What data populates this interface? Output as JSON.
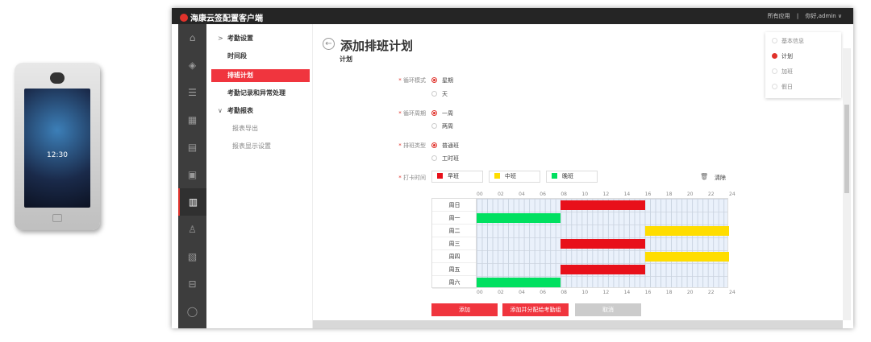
{
  "device": {
    "time": "12:30"
  },
  "topbar": {
    "app_title": "海康云签配置客户端",
    "all_apps": "所有应用",
    "separator": "|",
    "user": "你好,admin ∨"
  },
  "iconbar": [
    "home-icon",
    "cube-icon",
    "list-icon",
    "building-icon",
    "device-icon",
    "door-icon",
    "attendance-icon",
    "user-icon",
    "report-icon",
    "vehicle-icon",
    "shield-icon"
  ],
  "nav": {
    "items": [
      {
        "label": "考勤设置",
        "chevron": ">"
      },
      {
        "label": "时间段"
      },
      {
        "label": "排班计划",
        "selected": true
      },
      {
        "label": "考勤记录和异常处理"
      },
      {
        "label": "考勤报表",
        "chevron": "∨"
      },
      {
        "label": "报表导出",
        "sub": true
      },
      {
        "label": "报表显示设置",
        "sub": true
      }
    ]
  },
  "page": {
    "title": "添加排班计划",
    "section": "计划",
    "back_icon": "←"
  },
  "form": {
    "cycle_mode": {
      "label": "循环模式",
      "options": [
        "星期",
        "天"
      ],
      "selected": 0
    },
    "cycle_period": {
      "label": "循环周期",
      "options": [
        "一周",
        "两周"
      ],
      "selected": 0
    },
    "shift_type": {
      "label": "排班类型",
      "options": [
        "普通班",
        "工时班"
      ],
      "selected": 0
    },
    "punch_time": {
      "label": "打卡时间",
      "clear": "清除"
    }
  },
  "shifts": [
    {
      "name": "早班",
      "color": "#e8101a",
      "start": 8,
      "end": 16
    },
    {
      "name": "中班",
      "color": "#ffdd00",
      "start": 16,
      "end": 24
    },
    {
      "name": "晚班",
      "color": "#00e060",
      "start": 0,
      "end": 8
    }
  ],
  "schedule": {
    "days": [
      "周日",
      "周一",
      "周二",
      "周三",
      "周四",
      "周五",
      "周六"
    ],
    "assignment": [
      0,
      2,
      1,
      0,
      1,
      0,
      2
    ],
    "ticks": [
      "00",
      "02",
      "04",
      "06",
      "08",
      "10",
      "12",
      "14",
      "16",
      "18",
      "20",
      "22",
      "24"
    ]
  },
  "actions": {
    "add": "添加",
    "add_assign": "添加并分配给考勤组",
    "cancel": "取消"
  },
  "steps": {
    "items": [
      "基本信息",
      "计划",
      "加班",
      "假日"
    ],
    "current": 1
  }
}
